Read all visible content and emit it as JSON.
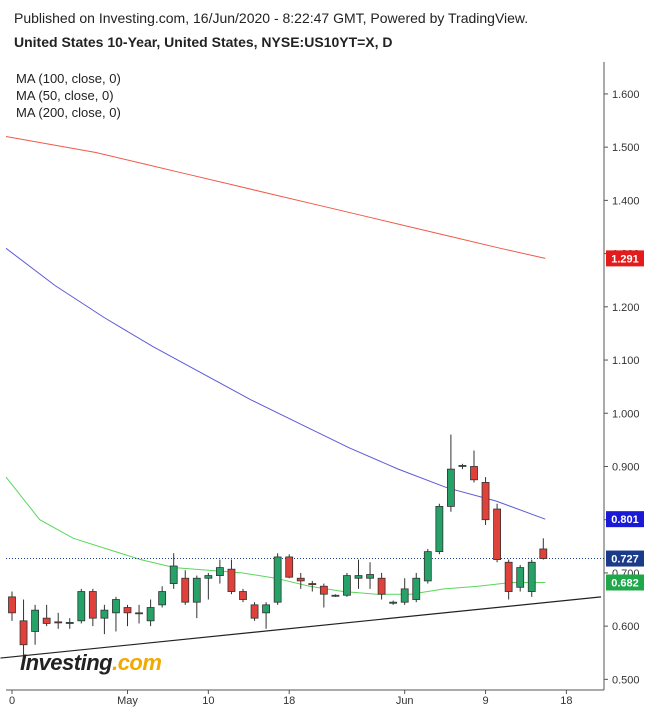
{
  "header": {
    "published": "Published on Investing.com, 16/Jun/2020 - 8:22:47 GMT, Powered by TradingView.",
    "title": "United States 10-Year, United States, NYSE:US10YT=X, D"
  },
  "legend": [
    "MA (100, close, 0)",
    "MA (50, close, 0)",
    "MA (200, close, 0)"
  ],
  "logo": {
    "text": "Investing",
    "suffix": ".com"
  },
  "chart_data": {
    "type": "candlestick",
    "y_ticks": [
      "0.500",
      "0.600",
      "0.700",
      "0.800",
      "0.900",
      "1.000",
      "1.100",
      "1.200",
      "1.300",
      "1.400",
      "1.500",
      "1.600"
    ],
    "x_ticks": [
      {
        "label": "0",
        "index": 0
      },
      {
        "label": "May",
        "index": 10
      },
      {
        "label": "10",
        "index": 17
      },
      {
        "label": "18",
        "index": 24
      },
      {
        "label": "Jun",
        "index": 34
      },
      {
        "label": "9",
        "index": 41
      },
      {
        "label": "18",
        "index": 48
      }
    ],
    "ylim": [
      0.48,
      1.66
    ],
    "colors": {
      "up": "#26a269",
      "down": "#e0413a",
      "ma100": "#5b5bd6",
      "ma50": "#5cd65c",
      "ma200": "#ef5a4a",
      "trend": "#222222"
    },
    "candles": [
      {
        "o": 0.655,
        "h": 0.665,
        "l": 0.61,
        "c": 0.625
      },
      {
        "o": 0.61,
        "h": 0.65,
        "l": 0.545,
        "c": 0.565
      },
      {
        "o": 0.59,
        "h": 0.64,
        "l": 0.565,
        "c": 0.63
      },
      {
        "o": 0.615,
        "h": 0.64,
        "l": 0.6,
        "c": 0.605
      },
      {
        "o": 0.608,
        "h": 0.625,
        "l": 0.595,
        "c": 0.607
      },
      {
        "o": 0.605,
        "h": 0.615,
        "l": 0.595,
        "c": 0.607
      },
      {
        "o": 0.61,
        "h": 0.67,
        "l": 0.605,
        "c": 0.665
      },
      {
        "o": 0.665,
        "h": 0.67,
        "l": 0.6,
        "c": 0.615
      },
      {
        "o": 0.615,
        "h": 0.64,
        "l": 0.585,
        "c": 0.63
      },
      {
        "o": 0.625,
        "h": 0.655,
        "l": 0.59,
        "c": 0.65
      },
      {
        "o": 0.635,
        "h": 0.64,
        "l": 0.6,
        "c": 0.625
      },
      {
        "o": 0.625,
        "h": 0.64,
        "l": 0.605,
        "c": 0.625
      },
      {
        "o": 0.61,
        "h": 0.65,
        "l": 0.6,
        "c": 0.635
      },
      {
        "o": 0.64,
        "h": 0.675,
        "l": 0.635,
        "c": 0.665
      },
      {
        "o": 0.68,
        "h": 0.737,
        "l": 0.67,
        "c": 0.713
      },
      {
        "o": 0.69,
        "h": 0.705,
        "l": 0.64,
        "c": 0.645
      },
      {
        "o": 0.645,
        "h": 0.695,
        "l": 0.615,
        "c": 0.69
      },
      {
        "o": 0.69,
        "h": 0.7,
        "l": 0.65,
        "c": 0.695
      },
      {
        "o": 0.695,
        "h": 0.725,
        "l": 0.68,
        "c": 0.71
      },
      {
        "o": 0.707,
        "h": 0.725,
        "l": 0.66,
        "c": 0.665
      },
      {
        "o": 0.665,
        "h": 0.67,
        "l": 0.645,
        "c": 0.65
      },
      {
        "o": 0.64,
        "h": 0.645,
        "l": 0.61,
        "c": 0.615
      },
      {
        "o": 0.625,
        "h": 0.645,
        "l": 0.595,
        "c": 0.64
      },
      {
        "o": 0.645,
        "h": 0.737,
        "l": 0.64,
        "c": 0.73
      },
      {
        "o": 0.73,
        "h": 0.735,
        "l": 0.69,
        "c": 0.692
      },
      {
        "o": 0.69,
        "h": 0.7,
        "l": 0.67,
        "c": 0.685
      },
      {
        "o": 0.68,
        "h": 0.685,
        "l": 0.665,
        "c": 0.678
      },
      {
        "o": 0.675,
        "h": 0.68,
        "l": 0.635,
        "c": 0.66
      },
      {
        "o": 0.657,
        "h": 0.66,
        "l": 0.655,
        "c": 0.658
      },
      {
        "o": 0.658,
        "h": 0.7,
        "l": 0.655,
        "c": 0.695
      },
      {
        "o": 0.69,
        "h": 0.725,
        "l": 0.67,
        "c": 0.695
      },
      {
        "o": 0.69,
        "h": 0.72,
        "l": 0.67,
        "c": 0.697
      },
      {
        "o": 0.69,
        "h": 0.7,
        "l": 0.65,
        "c": 0.66
      },
      {
        "o": 0.643,
        "h": 0.648,
        "l": 0.64,
        "c": 0.645
      },
      {
        "o": 0.645,
        "h": 0.69,
        "l": 0.64,
        "c": 0.67
      },
      {
        "o": 0.65,
        "h": 0.7,
        "l": 0.645,
        "c": 0.69
      },
      {
        "o": 0.685,
        "h": 0.745,
        "l": 0.68,
        "c": 0.74
      },
      {
        "o": 0.74,
        "h": 0.83,
        "l": 0.735,
        "c": 0.825
      },
      {
        "o": 0.825,
        "h": 0.96,
        "l": 0.815,
        "c": 0.895
      },
      {
        "o": 0.9,
        "h": 0.905,
        "l": 0.895,
        "c": 0.902
      },
      {
        "o": 0.9,
        "h": 0.93,
        "l": 0.87,
        "c": 0.875
      },
      {
        "o": 0.87,
        "h": 0.88,
        "l": 0.79,
        "c": 0.8
      },
      {
        "o": 0.82,
        "h": 0.83,
        "l": 0.72,
        "c": 0.725
      },
      {
        "o": 0.72,
        "h": 0.725,
        "l": 0.65,
        "c": 0.665
      },
      {
        "o": 0.673,
        "h": 0.715,
        "l": 0.665,
        "c": 0.71
      },
      {
        "o": 0.665,
        "h": 0.725,
        "l": 0.655,
        "c": 0.72
      },
      {
        "o": 0.745,
        "h": 0.765,
        "l": 0.725,
        "c": 0.727
      }
    ],
    "ma200": [
      1.52,
      1.505,
      1.49,
      1.47,
      1.45,
      1.43,
      1.41,
      1.39,
      1.37,
      1.35,
      1.33,
      1.31,
      1.291
    ],
    "ma100": [
      1.31,
      1.24,
      1.18,
      1.125,
      1.075,
      1.025,
      0.98,
      0.935,
      0.895,
      0.86,
      0.835,
      0.801
    ],
    "ma50": [
      0.88,
      0.8,
      0.765,
      0.745,
      0.725,
      0.71,
      0.705,
      0.7,
      0.69,
      0.675,
      0.665,
      0.66,
      0.66,
      0.67,
      0.675,
      0.682,
      0.682
    ],
    "trendline": [
      {
        "x_index": -1,
        "y": 0.54
      },
      {
        "x_index": 51,
        "y": 0.655
      }
    ],
    "last_price_line": 0.727,
    "price_badges": [
      {
        "label": "1.291",
        "value": 1.291,
        "color": "#e31b1b"
      },
      {
        "label": "0.801",
        "value": 0.801,
        "color": "#1a1ad6"
      },
      {
        "label": "0.727",
        "value": 0.727,
        "color": "#1a3a8a"
      },
      {
        "label": "0.682",
        "value": 0.682,
        "color": "#1fa84a"
      }
    ]
  }
}
